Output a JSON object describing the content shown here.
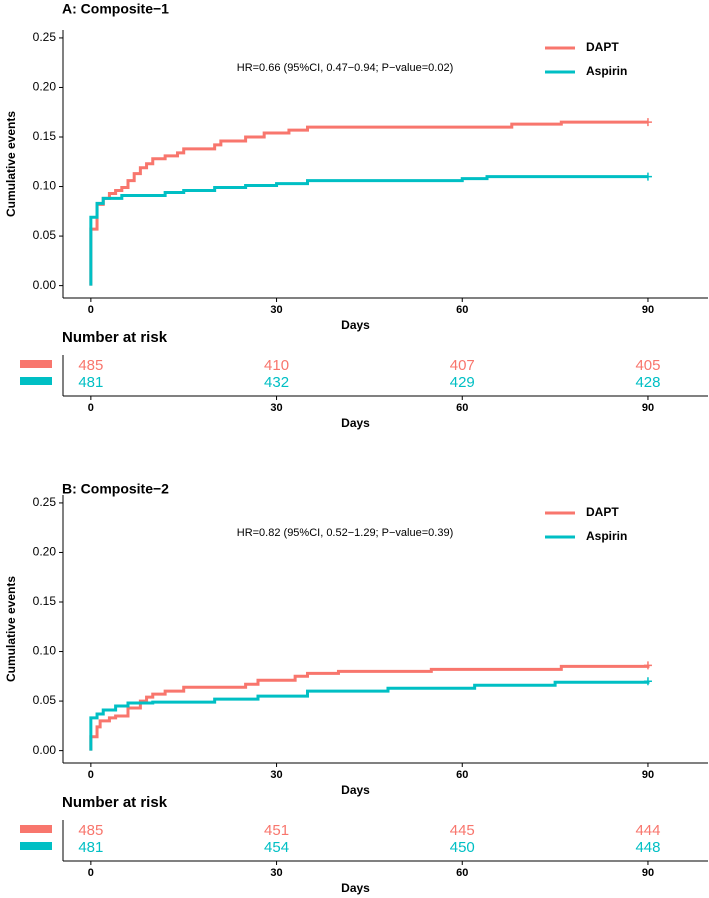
{
  "chart_data": [
    {
      "type": "step",
      "title": "A: Composite−1",
      "annotation": "HR=0.66 (95%CI, 0.47−0.94; P−value=0.02)",
      "ylabel": "Cumulative events",
      "xlabel": "Days",
      "legend": "top-right",
      "xlim": [
        -4.5,
        99.7
      ],
      "xticks": [
        0,
        30,
        60,
        90
      ],
      "ylim": [
        -0.0125,
        0.258
      ],
      "yticks": [
        {
          "value": 0,
          "label": "0.00"
        },
        {
          "value": 0.05,
          "label": "0.05"
        },
        {
          "value": 0.1,
          "label": "0.10"
        },
        {
          "value": 0.15,
          "label": "0.15"
        },
        {
          "value": 0.2,
          "label": "0.20"
        },
        {
          "value": 0.25,
          "label": "0.25"
        }
      ],
      "series": [
        {
          "name": "DAPT",
          "color": "#F8766D",
          "x": [
            0,
            0,
            1,
            2,
            3,
            4,
            5,
            6,
            7,
            8,
            9,
            10,
            12,
            14,
            15,
            20,
            21,
            25,
            28,
            32,
            35,
            68,
            76,
            90
          ],
          "values": [
            0,
            0.057,
            0.082,
            0.088,
            0.093,
            0.096,
            0.099,
            0.106,
            0.113,
            0.119,
            0.123,
            0.128,
            0.131,
            0.134,
            0.138,
            0.142,
            0.146,
            0.15,
            0.154,
            0.157,
            0.16,
            0.163,
            0.165,
            0.165
          ]
        },
        {
          "name": "Aspirin",
          "color": "#00BFC4",
          "x": [
            0,
            0,
            1,
            2,
            5,
            12,
            15,
            20,
            25,
            30,
            35,
            60,
            64,
            90
          ],
          "values": [
            0,
            0.069,
            0.083,
            0.088,
            0.091,
            0.094,
            0.096,
            0.099,
            0.101,
            0.103,
            0.106,
            0.108,
            0.11,
            0.11
          ]
        }
      ],
      "risk_table": {
        "title": "Number at risk",
        "xlabel": "Days",
        "times": [
          0,
          30,
          60,
          90
        ],
        "counts": [
          [
            485,
            410,
            407,
            405
          ],
          [
            481,
            432,
            429,
            428
          ]
        ]
      }
    },
    {
      "type": "step",
      "title": "B: Composite−2",
      "annotation": "HR=0.82 (95%CI, 0.52−1.29; P−value=0.39)",
      "ylabel": "Cumulative events",
      "xlabel": "Days",
      "legend": "top-right",
      "xlim": [
        -4.5,
        99.7
      ],
      "xticks": [
        0,
        30,
        60,
        90
      ],
      "ylim": [
        -0.0125,
        0.258
      ],
      "yticks": [
        {
          "value": 0,
          "label": "0.00"
        },
        {
          "value": 0.05,
          "label": "0.05"
        },
        {
          "value": 0.1,
          "label": "0.10"
        },
        {
          "value": 0.15,
          "label": "0.15"
        },
        {
          "value": 0.2,
          "label": "0.20"
        },
        {
          "value": 0.25,
          "label": "0.25"
        }
      ],
      "series": [
        {
          "name": "DAPT",
          "color": "#F8766D",
          "x": [
            0,
            0,
            1,
            1.5,
            3,
            4,
            6,
            8,
            9,
            10,
            12,
            15,
            25,
            27,
            33,
            35,
            40,
            55,
            76,
            90
          ],
          "values": [
            0,
            0.014,
            0.024,
            0.03,
            0.033,
            0.035,
            0.043,
            0.05,
            0.054,
            0.057,
            0.06,
            0.064,
            0.067,
            0.071,
            0.075,
            0.078,
            0.08,
            0.082,
            0.085,
            0.086
          ]
        },
        {
          "name": "Aspirin",
          "color": "#00BFC4",
          "x": [
            0,
            0,
            1,
            2,
            4,
            6,
            10,
            20,
            27,
            35,
            48,
            62,
            75,
            90
          ],
          "values": [
            0,
            0.033,
            0.037,
            0.041,
            0.045,
            0.048,
            0.049,
            0.052,
            0.055,
            0.06,
            0.063,
            0.066,
            0.069,
            0.07
          ]
        }
      ],
      "risk_table": {
        "title": "Number at risk",
        "xlabel": "Days",
        "times": [
          0,
          30,
          60,
          90
        ],
        "counts": [
          [
            485,
            451,
            445,
            444
          ],
          [
            481,
            454,
            450,
            448
          ]
        ]
      }
    }
  ]
}
